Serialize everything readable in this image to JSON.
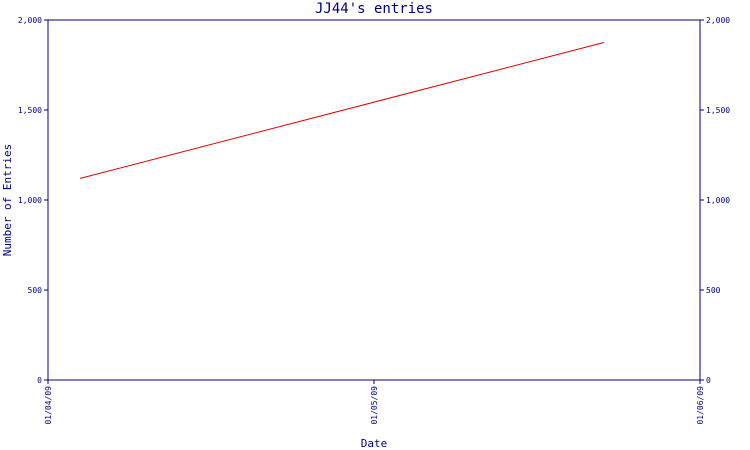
{
  "chart_data": {
    "type": "line",
    "title": "JJ44's entries",
    "xlabel": "Date",
    "ylabel": "Number of Entries",
    "x_tick_labels": [
      "01/04/09",
      "01/05/09",
      "01/06/09"
    ],
    "y_ticks": [
      0,
      500,
      1000,
      1500,
      2000
    ],
    "y_tick_labels": [
      "0",
      "500",
      "1,000",
      "1,500",
      "2,000"
    ],
    "right_axis_tick_labels": [
      "0",
      "500",
      "1,000",
      "1,500",
      "2,000"
    ],
    "ylim": [
      0,
      2000
    ],
    "xlim": [
      "2009-04-01",
      "2009-06-01"
    ],
    "series": [
      {
        "color": "#e00000",
        "x": [
          "2009-04-04",
          "2009-05-23"
        ],
        "values": [
          1120,
          1875
        ]
      }
    ],
    "axis_color": "#000080",
    "grid": false
  }
}
